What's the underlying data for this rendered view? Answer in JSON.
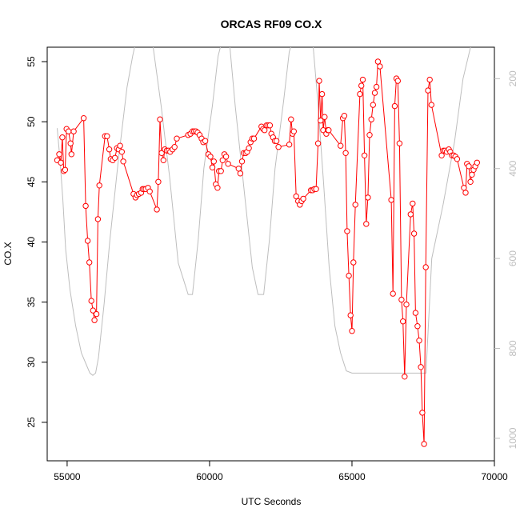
{
  "chart_data": {
    "type": "line",
    "title": "ORCAS RF09 CO.X",
    "xlabel": "UTC Seconds",
    "ylabel": "CO.X",
    "xlim": [
      54300,
      70000
    ],
    "ylim": [
      21.8,
      56.2
    ],
    "x_ticks": [
      55000,
      60000,
      65000,
      70000
    ],
    "y_ticks": [
      25,
      30,
      35,
      40,
      45,
      50,
      55
    ],
    "right_axis": {
      "label": "",
      "ticks": [
        200,
        400,
        600,
        800,
        1000
      ],
      "lim": [
        1050,
        130
      ],
      "color": "#bebebe"
    },
    "grid": false,
    "legend": "none",
    "series": [
      {
        "color": "#ff0000",
        "style": "points-and-lines",
        "points": [
          [
            54650,
            46.8
          ],
          [
            54720,
            47.3
          ],
          [
            54780,
            46.6
          ],
          [
            54830,
            48.7
          ],
          [
            54880,
            45.9
          ],
          [
            54930,
            46.0
          ],
          [
            54980,
            49.4
          ],
          [
            55050,
            49.2
          ],
          [
            55120,
            48.2
          ],
          [
            55150,
            47.3
          ],
          [
            55230,
            49.2
          ],
          [
            55580,
            50.3
          ],
          [
            55650,
            43.0
          ],
          [
            55720,
            40.1
          ],
          [
            55780,
            38.3
          ],
          [
            55850,
            35.1
          ],
          [
            55910,
            34.3
          ],
          [
            55960,
            33.5
          ],
          [
            56030,
            34.0
          ],
          [
            56080,
            41.9
          ],
          [
            56130,
            44.7
          ],
          [
            56330,
            48.8
          ],
          [
            56400,
            48.8
          ],
          [
            56480,
            47.7
          ],
          [
            56530,
            46.9
          ],
          [
            56600,
            46.8
          ],
          [
            56680,
            47.0
          ],
          [
            56750,
            47.8
          ],
          [
            56810,
            47.7
          ],
          [
            56860,
            48.0
          ],
          [
            56920,
            47.5
          ],
          [
            56970,
            46.7
          ],
          [
            57330,
            44.0
          ],
          [
            57400,
            43.7
          ],
          [
            57450,
            43.9
          ],
          [
            57520,
            44.0
          ],
          [
            57600,
            44.1
          ],
          [
            57650,
            44.4
          ],
          [
            57700,
            44.4
          ],
          [
            57760,
            44.4
          ],
          [
            57840,
            44.5
          ],
          [
            57900,
            44.2
          ],
          [
            58150,
            42.7
          ],
          [
            58200,
            45.0
          ],
          [
            58260,
            50.2
          ],
          [
            58320,
            47.4
          ],
          [
            58380,
            46.8
          ],
          [
            58430,
            47.7
          ],
          [
            58500,
            47.6
          ],
          [
            58560,
            47.6
          ],
          [
            58620,
            47.5
          ],
          [
            58700,
            47.7
          ],
          [
            58770,
            47.9
          ],
          [
            58850,
            48.6
          ],
          [
            59250,
            48.9
          ],
          [
            59330,
            49.0
          ],
          [
            59400,
            49.2
          ],
          [
            59460,
            49.2
          ],
          [
            59520,
            49.2
          ],
          [
            59580,
            49.1
          ],
          [
            59650,
            48.9
          ],
          [
            59720,
            48.6
          ],
          [
            59780,
            48.3
          ],
          [
            59850,
            48.4
          ],
          [
            59960,
            47.3
          ],
          [
            60030,
            47.1
          ],
          [
            60100,
            46.2
          ],
          [
            60150,
            46.7
          ],
          [
            60220,
            44.8
          ],
          [
            60280,
            44.5
          ],
          [
            60330,
            45.9
          ],
          [
            60400,
            45.9
          ],
          [
            60460,
            46.8
          ],
          [
            60520,
            47.3
          ],
          [
            60580,
            47.1
          ],
          [
            60650,
            46.5
          ],
          [
            61020,
            46.1
          ],
          [
            61080,
            45.7
          ],
          [
            61140,
            46.7
          ],
          [
            61200,
            47.4
          ],
          [
            61270,
            47.4
          ],
          [
            61320,
            47.5
          ],
          [
            61380,
            47.8
          ],
          [
            61440,
            48.3
          ],
          [
            61500,
            48.6
          ],
          [
            61560,
            48.6
          ],
          [
            61820,
            49.6
          ],
          [
            61880,
            49.4
          ],
          [
            61930,
            49.3
          ],
          [
            62000,
            49.7
          ],
          [
            62060,
            49.7
          ],
          [
            62120,
            49.7
          ],
          [
            62170,
            49.0
          ],
          [
            62230,
            48.7
          ],
          [
            62290,
            48.4
          ],
          [
            62350,
            48.4
          ],
          [
            62420,
            47.9
          ],
          [
            62800,
            48.1
          ],
          [
            62860,
            50.2
          ],
          [
            62910,
            49.0
          ],
          [
            62960,
            49.2
          ],
          [
            63040,
            43.8
          ],
          [
            63110,
            43.4
          ],
          [
            63170,
            43.1
          ],
          [
            63230,
            43.4
          ],
          [
            63290,
            43.6
          ],
          [
            63560,
            44.3
          ],
          [
            63620,
            44.3
          ],
          [
            63680,
            44.4
          ],
          [
            63740,
            44.4
          ],
          [
            63810,
            48.2
          ],
          [
            63850,
            53.4
          ],
          [
            63900,
            50.1
          ],
          [
            63950,
            52.3
          ],
          [
            63990,
            49.3
          ],
          [
            64040,
            50.4
          ],
          [
            64100,
            49.0
          ],
          [
            64150,
            49.3
          ],
          [
            64180,
            49.3
          ],
          [
            64600,
            48.0
          ],
          [
            64680,
            50.3
          ],
          [
            64730,
            50.5
          ],
          [
            64780,
            47.4
          ],
          [
            64830,
            40.9
          ],
          [
            64890,
            37.2
          ],
          [
            64950,
            33.9
          ],
          [
            65000,
            32.6
          ],
          [
            65050,
            38.3
          ],
          [
            65120,
            43.1
          ],
          [
            65280,
            52.3
          ],
          [
            65330,
            53.0
          ],
          [
            65380,
            53.5
          ],
          [
            65440,
            47.2
          ],
          [
            65500,
            41.5
          ],
          [
            65560,
            43.7
          ],
          [
            65620,
            48.9
          ],
          [
            65680,
            50.2
          ],
          [
            65740,
            51.4
          ],
          [
            65800,
            52.4
          ],
          [
            65860,
            52.9
          ],
          [
            65910,
            55.0
          ],
          [
            65980,
            54.6
          ],
          [
            66380,
            43.5
          ],
          [
            66440,
            35.7
          ],
          [
            66500,
            51.3
          ],
          [
            66560,
            53.6
          ],
          [
            66610,
            53.4
          ],
          [
            66670,
            48.2
          ],
          [
            66740,
            35.2
          ],
          [
            66790,
            33.4
          ],
          [
            66850,
            28.8
          ],
          [
            66910,
            34.8
          ],
          [
            67060,
            42.3
          ],
          [
            67130,
            43.2
          ],
          [
            67180,
            40.7
          ],
          [
            67230,
            34.1
          ],
          [
            67300,
            33.0
          ],
          [
            67360,
            31.8
          ],
          [
            67420,
            29.6
          ],
          [
            67470,
            25.8
          ],
          [
            67530,
            23.2
          ],
          [
            67590,
            37.9
          ],
          [
            67670,
            52.6
          ],
          [
            67730,
            53.5
          ],
          [
            67790,
            51.4
          ],
          [
            68150,
            47.2
          ],
          [
            68210,
            47.6
          ],
          [
            68270,
            47.6
          ],
          [
            68330,
            47.5
          ],
          [
            68400,
            47.7
          ],
          [
            68450,
            47.5
          ],
          [
            68510,
            47.2
          ],
          [
            68570,
            47.2
          ],
          [
            68630,
            47.1
          ],
          [
            68690,
            46.9
          ],
          [
            68930,
            44.5
          ],
          [
            68990,
            44.1
          ],
          [
            69040,
            46.5
          ],
          [
            69100,
            46.3
          ],
          [
            69160,
            45.0
          ],
          [
            69210,
            45.6
          ],
          [
            69270,
            46.0
          ],
          [
            69330,
            46.3
          ],
          [
            69390,
            46.6
          ]
        ]
      },
      {
        "color": "#bebebe",
        "style": "line",
        "axis": "right",
        "points": [
          [
            54650,
            310
          ],
          [
            54750,
            380
          ],
          [
            54850,
            470
          ],
          [
            54950,
            580
          ],
          [
            55100,
            670
          ],
          [
            55300,
            750
          ],
          [
            55500,
            810
          ],
          [
            55700,
            840
          ],
          [
            55800,
            855
          ],
          [
            55900,
            860
          ],
          [
            56000,
            855
          ],
          [
            56100,
            820
          ],
          [
            56300,
            700
          ],
          [
            56500,
            560
          ],
          [
            56800,
            380
          ],
          [
            57100,
            220
          ],
          [
            57300,
            150
          ],
          [
            57400,
            120
          ],
          [
            58000,
            120
          ],
          [
            58300,
            260
          ],
          [
            58600,
            420
          ],
          [
            58900,
            610
          ],
          [
            59100,
            650
          ],
          [
            59250,
            680
          ],
          [
            59400,
            680
          ],
          [
            59600,
            560
          ],
          [
            59800,
            400
          ],
          [
            60100,
            260
          ],
          [
            60300,
            150
          ],
          [
            60500,
            100
          ],
          [
            60700,
            120
          ],
          [
            60900,
            260
          ],
          [
            61200,
            440
          ],
          [
            61500,
            620
          ],
          [
            61700,
            680
          ],
          [
            61900,
            680
          ],
          [
            62100,
            560
          ],
          [
            62300,
            400
          ],
          [
            62600,
            250
          ],
          [
            62800,
            140
          ],
          [
            63000,
            100
          ],
          [
            63600,
            100
          ],
          [
            63800,
            250
          ],
          [
            64000,
            430
          ],
          [
            64200,
            620
          ],
          [
            64400,
            750
          ],
          [
            64600,
            810
          ],
          [
            64800,
            850
          ],
          [
            65000,
            855
          ],
          [
            65600,
            855
          ],
          [
            66800,
            855
          ],
          [
            67200,
            855
          ],
          [
            67400,
            855
          ],
          [
            67600,
            855
          ],
          [
            67800,
            600
          ],
          [
            68200,
            480
          ],
          [
            68600,
            340
          ],
          [
            68900,
            200
          ],
          [
            69200,
            120
          ],
          [
            69400,
            90
          ]
        ]
      }
    ]
  }
}
